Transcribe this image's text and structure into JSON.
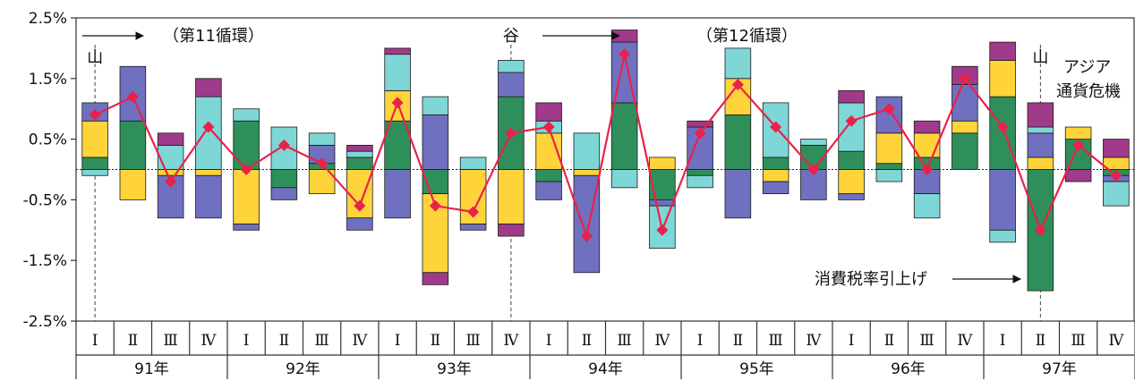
{
  "chart_data": {
    "type": "bar",
    "stacked": true,
    "ylim": [
      -2.5,
      2.5
    ],
    "y_ticks": [
      "2.5%",
      "1.5%",
      "0.5%",
      "-0.5%",
      "-1.5%",
      "-2.5%"
    ],
    "y_tick_values": [
      2.5,
      1.5,
      0.5,
      -0.5,
      -1.5,
      -2.5
    ],
    "quarter_labels": [
      "Ⅰ",
      "Ⅱ",
      "Ⅲ",
      "Ⅳ"
    ],
    "years": [
      "91年",
      "92年",
      "93年",
      "94年",
      "95年",
      "96年",
      "97年"
    ],
    "colors": {
      "green": "#2f8f5b",
      "yellow": "#ffd43b",
      "purple": "#7070c0",
      "cyan": "#7fd6d6",
      "magenta": "#a03a8a",
      "line": "#e8224a"
    },
    "series_order": [
      "green",
      "yellow",
      "purple",
      "cyan",
      "magenta"
    ],
    "bars": [
      {
        "green": 0.2,
        "yellow": 0.6,
        "purple": 0.3,
        "cyan": -0.1
      },
      {
        "green": 0.8,
        "yellow": -0.5,
        "purple": 0.9
      },
      {
        "yellow": -0.1,
        "purple": -0.7,
        "cyan": 0.4,
        "magenta": 0.2
      },
      {
        "yellow": -0.1,
        "purple": -0.7,
        "cyan": 1.2,
        "magenta": 0.3
      },
      {
        "green": 0.8,
        "yellow": -0.9,
        "purple": -0.1,
        "cyan": 0.2
      },
      {
        "green": -0.3,
        "purple": -0.2,
        "cyan": 0.7
      },
      {
        "green": 0.1,
        "yellow": -0.4,
        "purple": 0.3,
        "cyan": 0.2
      },
      {
        "green": 0.2,
        "yellow": -0.8,
        "purple": -0.2,
        "cyan": 0.1,
        "magenta": 0.1
      },
      {
        "green": 0.8,
        "yellow": 0.5,
        "purple": -0.8,
        "cyan": 0.6,
        "magenta": 0.1
      },
      {
        "green": -0.4,
        "yellow": -1.3,
        "purple": 0.9,
        "cyan": 0.3,
        "magenta": -0.2
      },
      {
        "yellow": -0.9,
        "purple": -0.1,
        "cyan": 0.2
      },
      {
        "green": 1.2,
        "yellow": -0.9,
        "purple": 0.4,
        "cyan": 0.2,
        "magenta": -0.2
      },
      {
        "green": -0.2,
        "yellow": 0.6,
        "purple": -0.3,
        "cyan": 0.2,
        "magenta": 0.3
      },
      {
        "yellow": -0.1,
        "purple": -1.6,
        "cyan": 0.6
      },
      {
        "green": 1.1,
        "purple": 1.0,
        "cyan": -0.3,
        "magenta": 0.2
      },
      {
        "green": -0.5,
        "yellow": 0.2,
        "purple": -0.1,
        "cyan": -0.7
      },
      {
        "green": -0.1,
        "purple": 0.7,
        "cyan": -0.2,
        "magenta": 0.1
      },
      {
        "green": 0.9,
        "yellow": 0.6,
        "purple": -0.8,
        "cyan": 0.5
      },
      {
        "green": 0.2,
        "yellow": -0.2,
        "purple": -0.2,
        "cyan": 0.9
      },
      {
        "green": 0.4,
        "purple": -0.5,
        "cyan": 0.1
      },
      {
        "green": 0.3,
        "yellow": -0.4,
        "purple": -0.1,
        "cyan": 0.8,
        "magenta": 0.2
      },
      {
        "green": 0.1,
        "yellow": 0.5,
        "purple": 0.6,
        "cyan": -0.2
      },
      {
        "green": 0.2,
        "yellow": 0.4,
        "purple": -0.4,
        "cyan": -0.4,
        "magenta": 0.2
      },
      {
        "green": 0.6,
        "yellow": 0.2,
        "purple": 0.6,
        "magenta": 0.3
      },
      {
        "green": 1.2,
        "yellow": 0.6,
        "purple": -1.0,
        "cyan": -0.2,
        "magenta": 0.3
      },
      {
        "green": -2.0,
        "yellow": 0.2,
        "purple": 0.4,
        "cyan": 0.1,
        "magenta": 0.4
      },
      {
        "green": 0.5,
        "yellow": 0.2,
        "magenta": -0.2
      },
      {
        "green": -0.1,
        "yellow": 0.2,
        "purple": -0.1,
        "cyan": -0.4,
        "magenta": 0.3
      }
    ],
    "line_values": [
      0.9,
      1.2,
      -0.2,
      0.7,
      0.0,
      0.4,
      0.1,
      -0.6,
      1.1,
      -0.6,
      -0.7,
      0.6,
      0.7,
      -1.1,
      1.9,
      -1.0,
      0.6,
      1.4,
      0.7,
      0.0,
      0.8,
      1.0,
      0.0,
      1.5,
      0.7,
      -1.0,
      0.4,
      -0.1
    ],
    "dashed_lines": [
      {
        "at_quarter": 0,
        "label": "山"
      },
      {
        "at_quarter": 11,
        "label": "谷"
      },
      {
        "at_quarter": 25,
        "label": "山"
      }
    ],
    "annotations": {
      "cycle11": "（第11循環）",
      "cycle12": "（第12循環）",
      "crisis_line1": "アジア",
      "crisis_line2": "通貨危機",
      "tax": "消費税率引上げ"
    }
  }
}
